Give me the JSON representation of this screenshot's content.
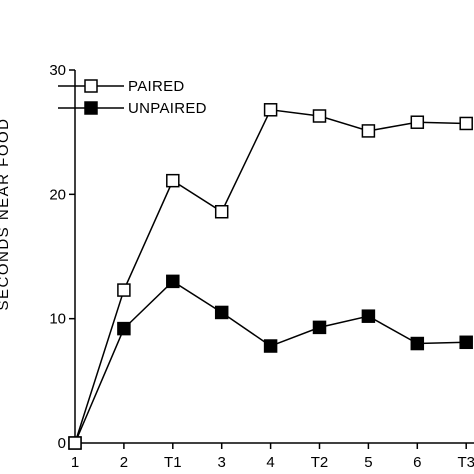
{
  "chart_data": {
    "type": "line",
    "title": "",
    "xlabel": "",
    "ylabel": "SECONDS NEAR FOOD",
    "categories": [
      "1",
      "2",
      "T1",
      "3",
      "4",
      "T2",
      "5",
      "6",
      "T3"
    ],
    "ylim": [
      0,
      30
    ],
    "yticks": [
      0,
      10,
      20,
      30
    ],
    "grid": false,
    "legend_position": "top-left",
    "series": [
      {
        "name": "PAIRED",
        "marker": "open-square",
        "color": "#000000",
        "values": [
          0,
          12.3,
          21.1,
          18.6,
          26.8,
          26.3,
          25.1,
          25.8,
          25.7
        ]
      },
      {
        "name": "UNPAIRED",
        "marker": "filled-square",
        "color": "#000000",
        "values": [
          0,
          9.2,
          13.0,
          10.5,
          7.8,
          9.3,
          10.2,
          8.0,
          8.1
        ]
      }
    ]
  }
}
